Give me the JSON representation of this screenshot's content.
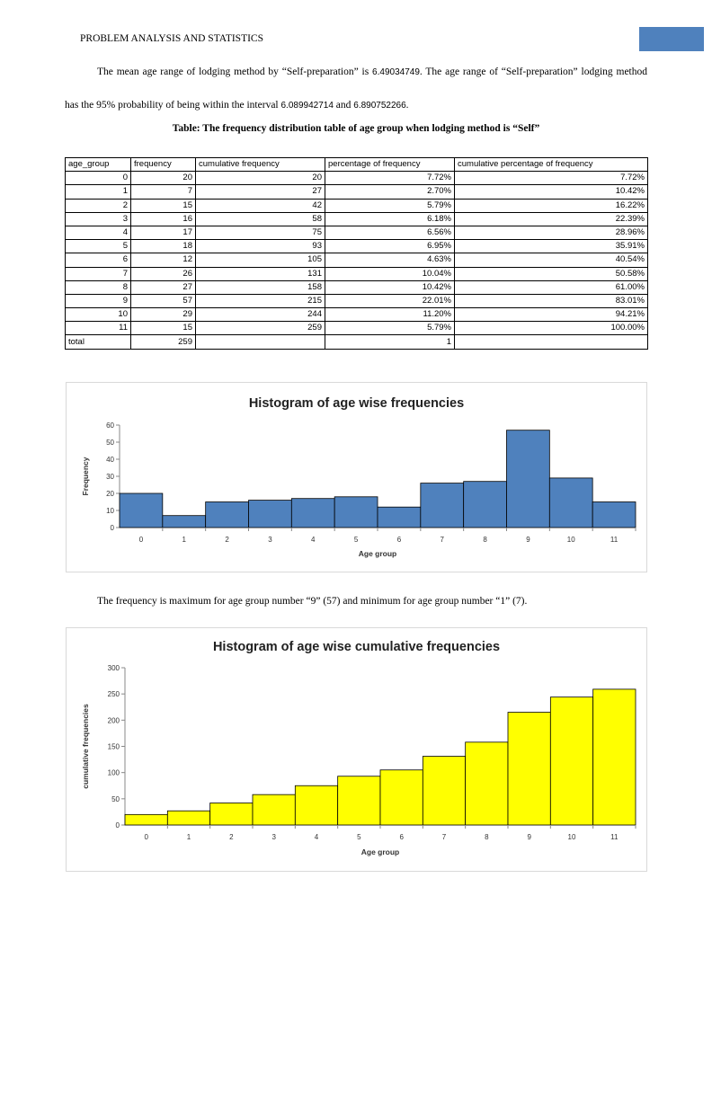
{
  "header": {
    "title": "PROBLEM ANALYSIS AND STATISTICS",
    "accent_color": "#4f81bd"
  },
  "paragraph1": {
    "text_a": "The mean age range of lodging method by “Self-preparation” is ",
    "mean": "6.49034749",
    "text_b": ". The age range of “Self-preparation” lodging method has the 95% probability of being within the interval ",
    "lower": "6.089942714",
    "text_c": " and ",
    "upper": "6.890752266",
    "text_d": "."
  },
  "table": {
    "caption": "Table: The frequency distribution table of age group when lodging method is “Self”",
    "headers": [
      "age_group",
      "frequency",
      "cumulative frequency",
      "percentage of frequency",
      "cumulative percentage of frequency"
    ],
    "rows": [
      [
        "0",
        "20",
        "20",
        "7.72%",
        "7.72%"
      ],
      [
        "1",
        "7",
        "27",
        "2.70%",
        "10.42%"
      ],
      [
        "2",
        "15",
        "42",
        "5.79%",
        "16.22%"
      ],
      [
        "3",
        "16",
        "58",
        "6.18%",
        "22.39%"
      ],
      [
        "4",
        "17",
        "75",
        "6.56%",
        "28.96%"
      ],
      [
        "5",
        "18",
        "93",
        "6.95%",
        "35.91%"
      ],
      [
        "6",
        "12",
        "105",
        "4.63%",
        "40.54%"
      ],
      [
        "7",
        "26",
        "131",
        "10.04%",
        "50.58%"
      ],
      [
        "8",
        "27",
        "158",
        "10.42%",
        "61.00%"
      ],
      [
        "9",
        "57",
        "215",
        "22.01%",
        "83.01%"
      ],
      [
        "10",
        "29",
        "244",
        "11.20%",
        "94.21%"
      ],
      [
        "11",
        "15",
        "259",
        "5.79%",
        "100.00%"
      ],
      [
        "total",
        "259",
        "",
        "1",
        ""
      ]
    ]
  },
  "paragraph2": {
    "text": "The frequency is maximum for age group number “9” (57) and minimum for age group number “1” (7)."
  },
  "chart_data": [
    {
      "type": "bar",
      "title": "Histogram of age wise frequencies",
      "xlabel": "Age group",
      "ylabel": "Frequency",
      "categories": [
        "0",
        "1",
        "2",
        "3",
        "4",
        "5",
        "6",
        "7",
        "8",
        "9",
        "10",
        "11"
      ],
      "values": [
        20,
        7,
        15,
        16,
        17,
        18,
        12,
        26,
        27,
        57,
        29,
        15
      ],
      "ylim": [
        0,
        60
      ],
      "yticks": [
        "0",
        "10",
        "20",
        "30",
        "40",
        "50",
        "60"
      ],
      "grid": false,
      "legend": "none",
      "color": "#4f81bd"
    },
    {
      "type": "bar",
      "title": "Histogram of age wise cumulative frequencies",
      "xlabel": "Age group",
      "ylabel": "cumulative frequencies",
      "categories": [
        "0",
        "1",
        "2",
        "3",
        "4",
        "5",
        "6",
        "7",
        "8",
        "9",
        "10",
        "11"
      ],
      "values": [
        20,
        27,
        42,
        58,
        75,
        93,
        105,
        131,
        158,
        215,
        244,
        259
      ],
      "ylim": [
        0,
        300
      ],
      "yticks": [
        "0",
        "50",
        "100",
        "150",
        "200",
        "250",
        "300"
      ],
      "grid": false,
      "legend": "none",
      "color": "#ffff00"
    }
  ]
}
